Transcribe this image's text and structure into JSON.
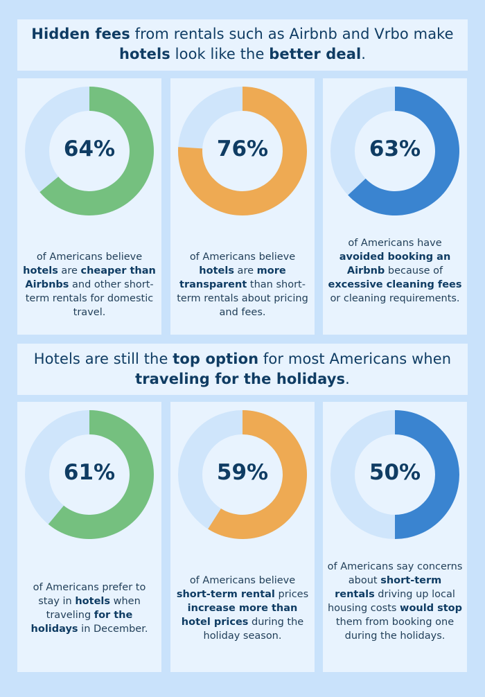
{
  "banner_top": {
    "parts": [
      {
        "text": "Hidden fees",
        "bold": true
      },
      {
        "text": " from rentals such as Airbnb and Vrbo make ",
        "bold": false
      },
      {
        "text": "hotels",
        "bold": true
      },
      {
        "text": " look like the ",
        "bold": false
      },
      {
        "text": "better deal",
        "bold": true
      },
      {
        "text": ".",
        "bold": false
      }
    ]
  },
  "banner_bottom": {
    "parts": [
      {
        "text": "Hotels are still the ",
        "bold": false
      },
      {
        "text": "top option",
        "bold": true
      },
      {
        "text": " for most Americans when ",
        "bold": false
      },
      {
        "text": "traveling for the holidays",
        "bold": true
      },
      {
        "text": ".",
        "bold": false
      }
    ]
  },
  "colors": {
    "green": "#75c07f",
    "orange": "#eeaa53",
    "blue": "#3a84d0",
    "track": "#cfe5fb",
    "text": "#0f3c63"
  },
  "chart_data": [
    {
      "type": "pie",
      "label": "64%",
      "value": 64,
      "color": "green",
      "description": [
        {
          "text": "of Americans believe ",
          "bold": false
        },
        {
          "text": "hotels",
          "bold": true
        },
        {
          "text": " are ",
          "bold": false
        },
        {
          "text": "cheaper than Airbnbs",
          "bold": true
        },
        {
          "text": " and other short-term rentals for domestic travel.",
          "bold": false
        }
      ]
    },
    {
      "type": "pie",
      "label": "76%",
      "value": 76,
      "color": "orange",
      "description": [
        {
          "text": "of Americans believe ",
          "bold": false
        },
        {
          "text": "hotels",
          "bold": true
        },
        {
          "text": " are ",
          "bold": false
        },
        {
          "text": "more transparent",
          "bold": true
        },
        {
          "text": " than short-term rentals about pricing and fees.",
          "bold": false
        }
      ]
    },
    {
      "type": "pie",
      "label": "63%",
      "value": 63,
      "color": "blue",
      "description": [
        {
          "text": "of Americans have ",
          "bold": false
        },
        {
          "text": "avoided booking an Airbnb",
          "bold": true
        },
        {
          "text": " because of ",
          "bold": false
        },
        {
          "text": "excessive cleaning fees",
          "bold": true
        },
        {
          "text": " or cleaning requirements.",
          "bold": false
        }
      ]
    },
    {
      "type": "pie",
      "label": "61%",
      "value": 61,
      "color": "green",
      "description": [
        {
          "text": "of Americans prefer to stay in ",
          "bold": false
        },
        {
          "text": "hotels",
          "bold": true
        },
        {
          "text": " when traveling ",
          "bold": false
        },
        {
          "text": "for the holidays",
          "bold": true
        },
        {
          "text": " in December.",
          "bold": false
        }
      ]
    },
    {
      "type": "pie",
      "label": "59%",
      "value": 59,
      "color": "orange",
      "description": [
        {
          "text": "of Americans believe ",
          "bold": false
        },
        {
          "text": "short-term rental",
          "bold": true
        },
        {
          "text": " prices ",
          "bold": false
        },
        {
          "text": "increase more than hotel prices",
          "bold": true
        },
        {
          "text": " during the holiday season.",
          "bold": false
        }
      ]
    },
    {
      "type": "pie",
      "label": "50%",
      "value": 50,
      "color": "blue",
      "description": [
        {
          "text": "of Americans say concerns about ",
          "bold": false
        },
        {
          "text": "short-term rentals",
          "bold": true
        },
        {
          "text": " driving up local housing costs ",
          "bold": false
        },
        {
          "text": "would stop",
          "bold": true
        },
        {
          "text": " them from booking one during the holidays.",
          "bold": false
        }
      ]
    }
  ]
}
